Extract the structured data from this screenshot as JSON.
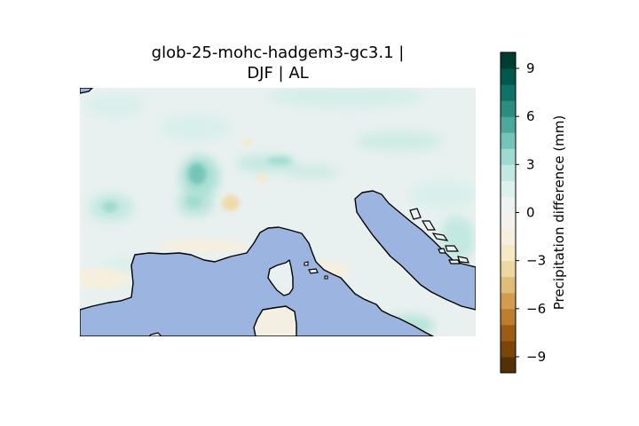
{
  "title": {
    "line1": "glob-25-mohc-hadgem3-gc3.1 |",
    "line2": "DJF | AL"
  },
  "colorbar": {
    "label": "Precipitation difference (mm)",
    "ticks": [
      "9",
      "6",
      "3",
      "0",
      "−3",
      "−6",
      "−9"
    ],
    "tick_values": [
      9,
      6,
      3,
      0,
      -3,
      -6,
      -9
    ],
    "range": [
      -10,
      10
    ],
    "levels": 20,
    "colormap": "BrBG",
    "colors": [
      "#543005",
      "#7a4508",
      "#9c5c15",
      "#bd7d2e",
      "#d29c50",
      "#dfbc78",
      "#edd8a3",
      "#f5e9c6",
      "#f6efde",
      "#f4f1ec",
      "#ecf2f1",
      "#dcf0ec",
      "#c2e8e1",
      "#9fdad0",
      "#74c5b7",
      "#4ba89b",
      "#2a8d80",
      "#0f7267",
      "#00584d",
      "#003c30"
    ]
  },
  "map": {
    "region": "Alps / Northern Italy",
    "sea_color": "#9bb5e0",
    "coastline_color": "#000000"
  }
}
